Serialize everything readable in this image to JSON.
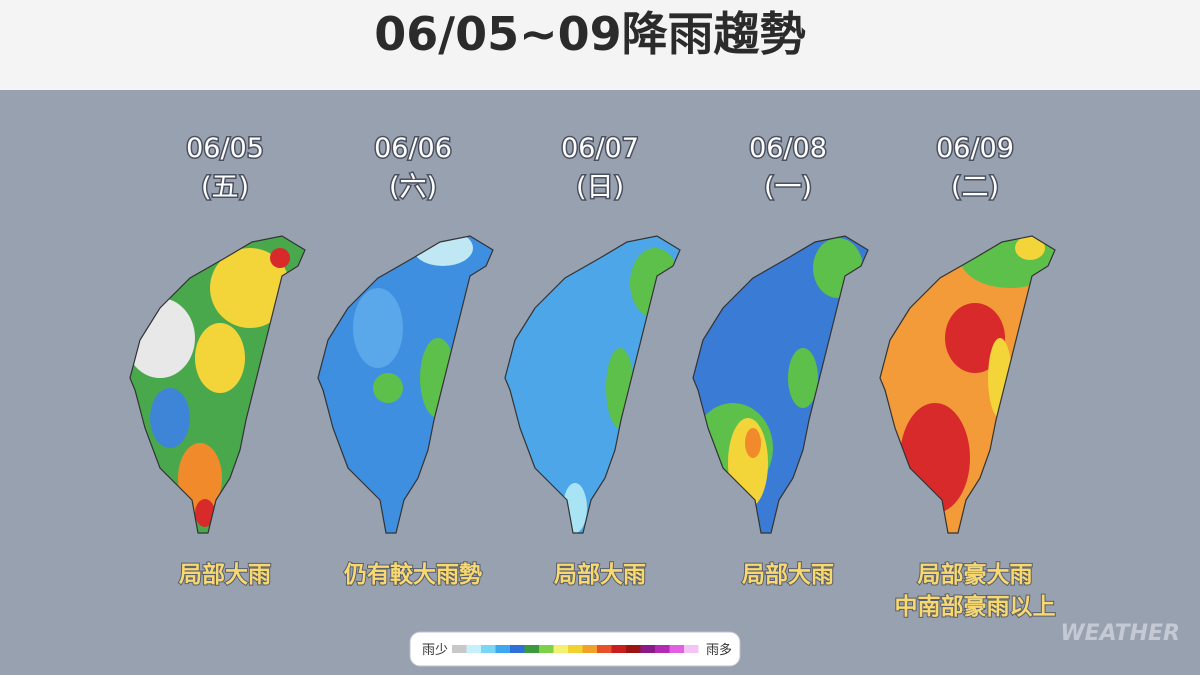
{
  "header": {
    "title": "06/05~09降雨趨勢"
  },
  "panels": [
    {
      "date": "06/05",
      "weekday": "(五)",
      "caption": [
        "局部大雨"
      ]
    },
    {
      "date": "06/06",
      "weekday": "(六)",
      "caption": [
        "仍有較大雨勢"
      ]
    },
    {
      "date": "06/07",
      "weekday": "(日)",
      "caption": [
        "局部大雨"
      ]
    },
    {
      "date": "06/08",
      "weekday": "(一)",
      "caption": [
        "局部大雨"
      ]
    },
    {
      "date": "06/09",
      "weekday": "(二)",
      "caption": [
        "局部豪大雨",
        "中南部豪雨以上"
      ]
    }
  ],
  "legend": {
    "low": "雨少",
    "high": "雨多"
  },
  "watermark": "WEATHER"
}
